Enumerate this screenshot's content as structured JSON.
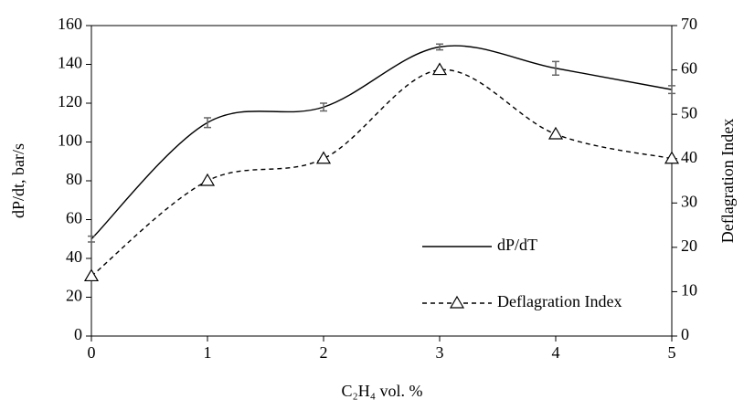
{
  "chart_data": {
    "type": "line",
    "x": [
      0,
      1,
      2,
      3,
      4,
      5
    ],
    "xlim": [
      0,
      5
    ],
    "xticks": [
      0,
      1,
      2,
      3,
      4,
      5
    ],
    "ylim": [
      0,
      160
    ],
    "yticks": [
      0,
      20,
      40,
      60,
      80,
      100,
      120,
      140,
      160
    ],
    "y2lim": [
      0,
      70
    ],
    "y2ticks": [
      0,
      10,
      20,
      30,
      40,
      50,
      60,
      70
    ],
    "xlabel": "C₂H₄ vol. %",
    "ylabel": "dP/dt, bar/s",
    "y2label": "Deflagration Index",
    "series": [
      {
        "name": "dP/dT",
        "color": "#000000",
        "line_style": "solid",
        "smooth": true,
        "values": [
          50,
          110,
          118,
          149,
          138,
          127
        ],
        "errors": [
          1.5,
          2.5,
          2,
          1.5,
          3.5,
          2
        ]
      },
      {
        "name": "Deflagration Index",
        "color": "#000000",
        "line_style": "dashed",
        "marker": "triangle",
        "smooth": true,
        "axis": "y2",
        "values": [
          13.5,
          35,
          40,
          60,
          45.5,
          40
        ]
      }
    ]
  }
}
